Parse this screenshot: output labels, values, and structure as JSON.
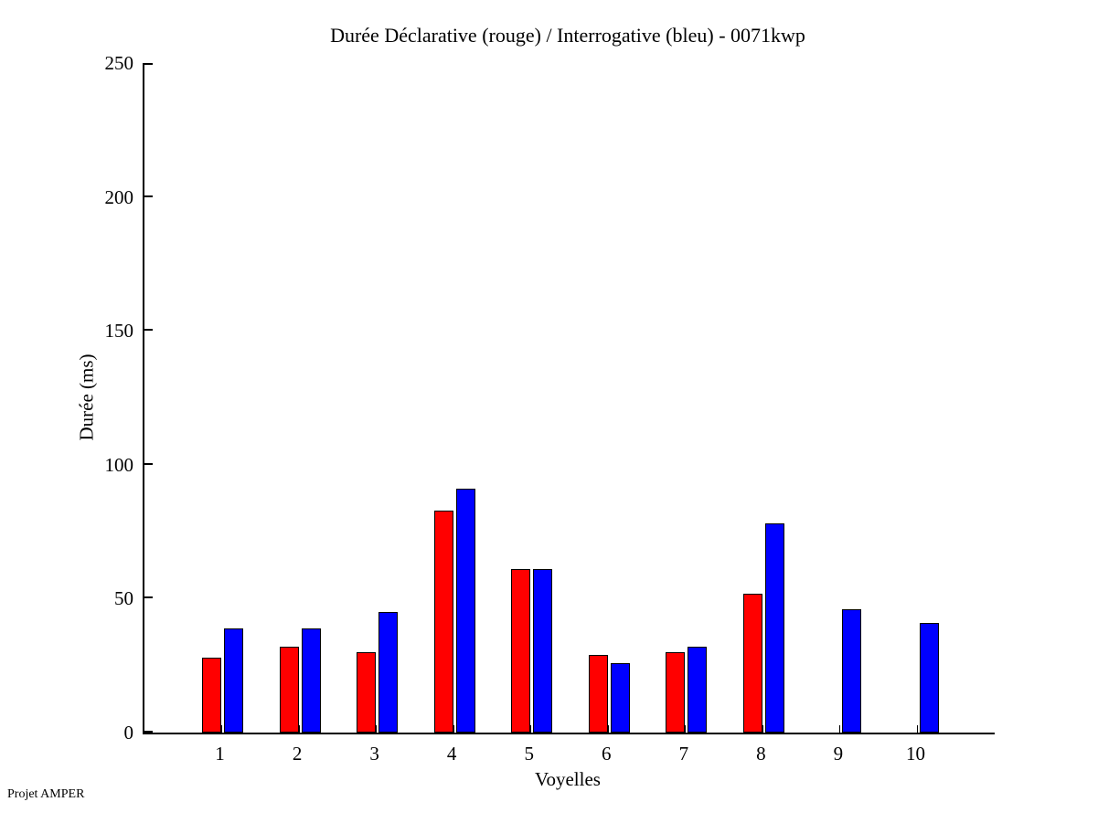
{
  "title": "Durée Déclarative (rouge) / Interrogative (bleu) - 0071kwp",
  "footer": "Projet AMPER",
  "chart_data": {
    "type": "bar",
    "title": "Durée Déclarative (rouge) / Interrogative (bleu) - 0071kwp",
    "xlabel": "Voyelles",
    "ylabel": "Durée (ms)",
    "categories": [
      "1",
      "2",
      "3",
      "4",
      "5",
      "6",
      "7",
      "8",
      "9",
      "10"
    ],
    "series": [
      {
        "name": "Déclarative",
        "color_name": "rouge",
        "color": "#ff0000",
        "values": [
          28,
          32,
          30,
          83,
          61,
          29,
          30,
          52,
          0,
          0
        ]
      },
      {
        "name": "Interrogative",
        "color_name": "bleu",
        "color": "#0000ff",
        "values": [
          39,
          39,
          45,
          91,
          61,
          26,
          32,
          78,
          46,
          41
        ]
      }
    ],
    "ylim": [
      0,
      250
    ],
    "yticks": [
      0,
      50,
      100,
      150,
      200,
      250
    ],
    "grid": false,
    "legend_position": "none",
    "axis_color": "#000000",
    "background_color": "#ffffff"
  }
}
